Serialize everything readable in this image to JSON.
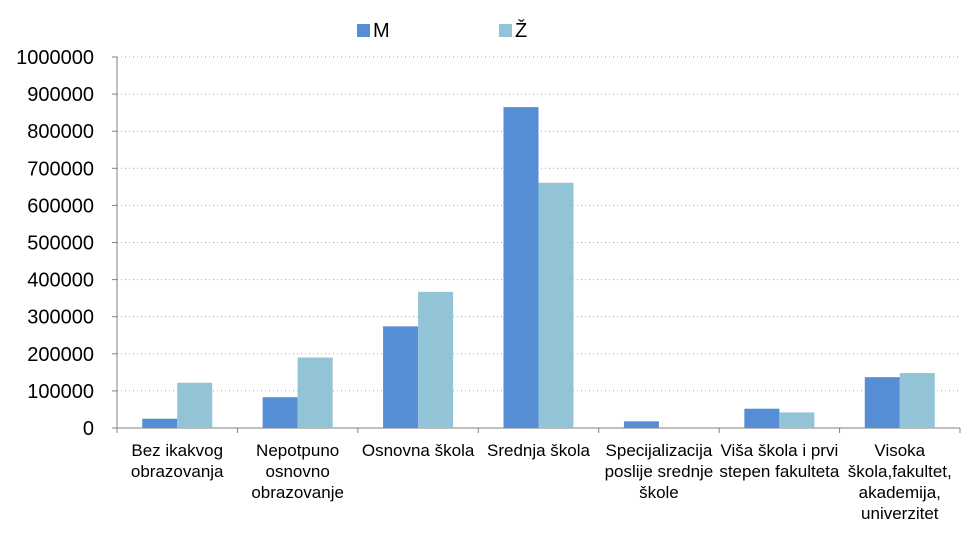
{
  "chart_data": {
    "type": "bar",
    "title": "",
    "xlabel": "",
    "ylabel": "",
    "ylim": [
      0,
      1000000
    ],
    "yticks": [
      0,
      100000,
      200000,
      300000,
      400000,
      500000,
      600000,
      700000,
      800000,
      900000,
      1000000
    ],
    "grid": true,
    "legend_position": "top-center",
    "categories": [
      [
        "Bez ikakvog",
        "obrazovanja"
      ],
      [
        "Nepotpuno",
        "osnovno",
        "obrazovanje"
      ],
      [
        "Osnovna škola"
      ],
      [
        "Srednja škola"
      ],
      [
        "Specijalizacija",
        "poslije srednje",
        "škole"
      ],
      [
        "Viša škola i prvi",
        "stepen fakulteta"
      ],
      [
        "Visoka",
        "škola,fakultet,",
        "akademija,",
        "univerzitet"
      ]
    ],
    "series": [
      {
        "name": "M",
        "color": "#558ed5",
        "values": [
          25000,
          83000,
          274000,
          865000,
          18000,
          52000,
          137000
        ]
      },
      {
        "name": "Ž",
        "color": "#93c3d6",
        "values": [
          122000,
          190000,
          367000,
          661000,
          0,
          42000,
          148000
        ]
      }
    ]
  }
}
